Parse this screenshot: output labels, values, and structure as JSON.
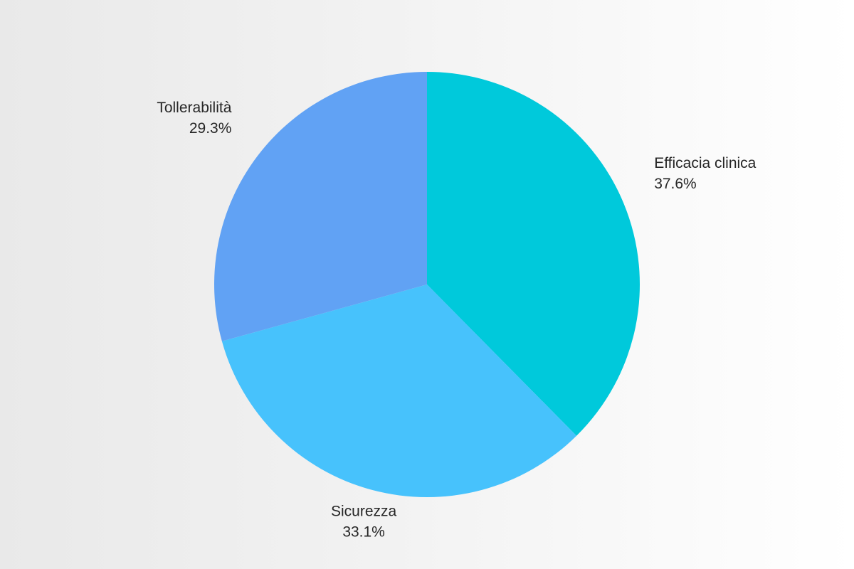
{
  "chart_data": {
    "type": "pie",
    "title": "",
    "categories": [
      "Efficacia clinica",
      "Sicurezza",
      "Tollerabilità"
    ],
    "values": [
      37.6,
      33.1,
      29.3
    ],
    "value_labels": [
      "37.6%",
      "33.1%",
      "29.3%"
    ],
    "colors": [
      "#00c9db",
      "#47c2fc",
      "#61a2f4"
    ],
    "start_angle": "top",
    "direction": "clockwise",
    "label_position": "outside",
    "legend": "none",
    "text_color": "#262626",
    "background": {
      "type": "linear-gradient",
      "direction": "left-to-right",
      "from": "#e9e9e9",
      "to": "#ffffff"
    }
  }
}
